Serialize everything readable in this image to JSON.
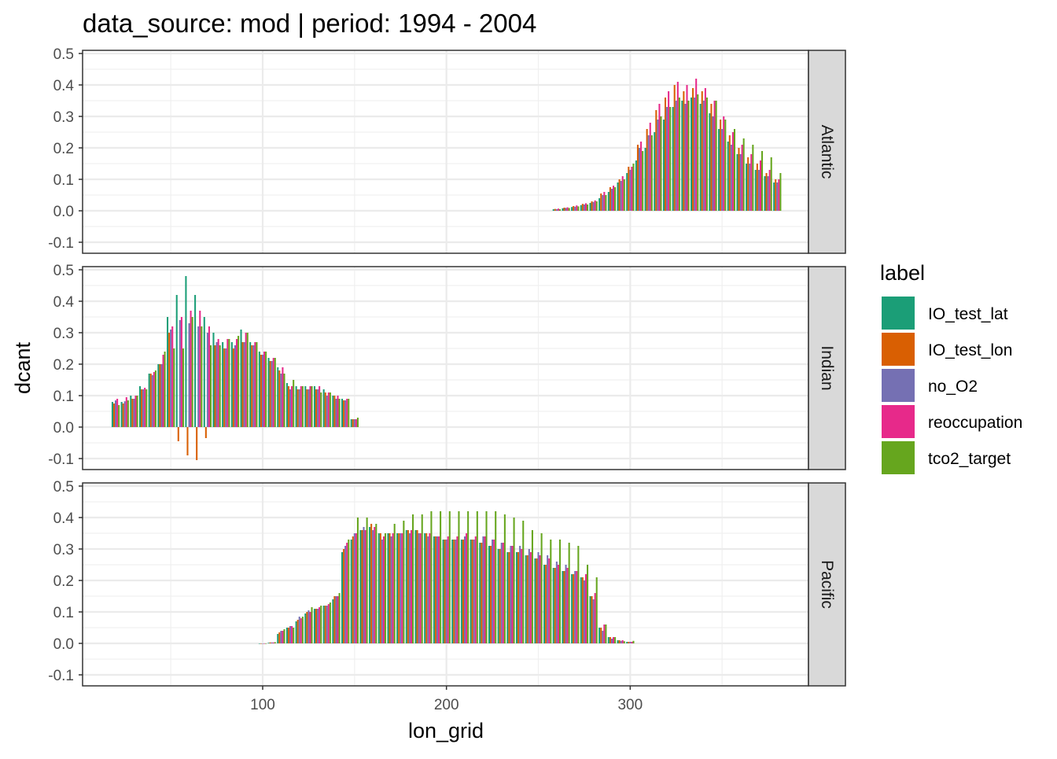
{
  "chart_data": {
    "type": "bar",
    "title": "data_source: mod | period: 1994 - 2004",
    "xlabel": "lon_grid",
    "ylabel": "dcant",
    "xlim": [
      2,
      397
    ],
    "ylim": [
      -0.135,
      0.51
    ],
    "x_ticks": [
      100,
      200,
      300
    ],
    "y_ticks": [
      -0.1,
      0.0,
      0.1,
      0.2,
      0.3,
      0.4,
      0.5
    ],
    "y_tick_labels": [
      "-0.1",
      "0.0",
      "0.1",
      "0.2",
      "0.3",
      "0.4",
      "0.5"
    ],
    "grid": true,
    "legend_position": "right",
    "legend": {
      "title": "label",
      "entries": [
        {
          "name": "IO_test_lat",
          "color": "#1B9E77"
        },
        {
          "name": "IO_test_lon",
          "color": "#D95F02"
        },
        {
          "name": "no_O2",
          "color": "#7570B3"
        },
        {
          "name": "reoccupation",
          "color": "#E7298A"
        },
        {
          "name": "tco2_target",
          "color": "#66A61E"
        }
      ]
    },
    "series_order": [
      "IO_test_lat",
      "IO_test_lon",
      "no_O2",
      "reoccupation",
      "tco2_target"
    ],
    "facets": [
      {
        "name": "Atlantic",
        "x": [
          260,
          265,
          270,
          275,
          280,
          285,
          290,
          295,
          300,
          305,
          310,
          315,
          320,
          325,
          330,
          335,
          340,
          345,
          350,
          355,
          360,
          365,
          370,
          375,
          380
        ],
        "values": [
          [
            0.005,
            0.008,
            0.012,
            0.018,
            0.025,
            0.04,
            0.06,
            0.09,
            0.12,
            0.16,
            0.2,
            0.25,
            0.29,
            0.33,
            0.35,
            0.36,
            0.34,
            0.31,
            0.26,
            0.22,
            0.18,
            0.15,
            0.13,
            0.11,
            0.09
          ],
          [
            0.006,
            0.01,
            0.015,
            0.022,
            0.03,
            0.055,
            0.075,
            0.1,
            0.14,
            0.21,
            0.26,
            0.32,
            0.36,
            0.4,
            0.38,
            0.39,
            0.38,
            0.34,
            0.29,
            0.24,
            0.2,
            0.17,
            0.15,
            0.12,
            0.1
          ],
          [
            0.005,
            0.009,
            0.013,
            0.02,
            0.028,
            0.05,
            0.07,
            0.095,
            0.13,
            0.2,
            0.24,
            0.29,
            0.33,
            0.35,
            0.34,
            0.36,
            0.35,
            0.3,
            0.26,
            0.21,
            0.18,
            0.15,
            0.13,
            0.11,
            0.09
          ],
          [
            0.007,
            0.011,
            0.017,
            0.024,
            0.033,
            0.06,
            0.08,
            0.11,
            0.14,
            0.22,
            0.28,
            0.34,
            0.38,
            0.41,
            0.4,
            0.42,
            0.39,
            0.35,
            0.3,
            0.25,
            0.21,
            0.18,
            0.16,
            0.13,
            0.1
          ],
          [
            0.005,
            0.009,
            0.014,
            0.02,
            0.03,
            0.05,
            0.075,
            0.1,
            0.15,
            0.19,
            0.24,
            0.3,
            0.33,
            0.36,
            0.35,
            0.37,
            0.36,
            0.35,
            0.29,
            0.26,
            0.23,
            0.21,
            0.19,
            0.17,
            0.12
          ]
        ]
      },
      {
        "name": "Indian",
        "x": [
          20,
          25,
          30,
          35,
          40,
          45,
          50,
          55,
          60,
          65,
          70,
          75,
          80,
          85,
          90,
          95,
          100,
          105,
          110,
          115,
          120,
          125,
          130,
          135,
          140,
          145,
          150
        ],
        "values": [
          [
            0.08,
            0.08,
            0.1,
            0.13,
            0.17,
            0.2,
            0.35,
            0.42,
            0.48,
            0.42,
            0.35,
            0.3,
            0.27,
            0.27,
            0.31,
            0.27,
            0.24,
            0.22,
            0.19,
            0.14,
            0.13,
            0.13,
            0.13,
            0.12,
            0.1,
            0.09,
            0.025
          ],
          [
            0.075,
            0.075,
            0.09,
            0.12,
            0.17,
            0.2,
            0.3,
            -0.045,
            -0.09,
            -0.105,
            -0.035,
            0.26,
            0.25,
            0.25,
            0.27,
            0.26,
            0.23,
            0.21,
            0.18,
            0.13,
            0.12,
            0.12,
            0.12,
            0.11,
            0.1,
            0.085,
            0.025
          ],
          [
            0.085,
            0.082,
            0.09,
            0.12,
            0.165,
            0.2,
            0.31,
            0.34,
            0.33,
            0.32,
            0.3,
            0.27,
            0.25,
            0.26,
            0.27,
            0.26,
            0.23,
            0.21,
            0.17,
            0.12,
            0.12,
            0.12,
            0.12,
            0.1,
            0.09,
            0.085,
            0.025
          ],
          [
            0.09,
            0.095,
            0.1,
            0.125,
            0.175,
            0.23,
            0.32,
            0.35,
            0.37,
            0.37,
            0.32,
            0.28,
            0.28,
            0.28,
            0.3,
            0.27,
            0.24,
            0.22,
            0.19,
            0.13,
            0.13,
            0.13,
            0.13,
            0.11,
            0.1,
            0.09,
            0.025
          ],
          [
            0.07,
            0.085,
            0.1,
            0.12,
            0.18,
            0.24,
            0.25,
            0.25,
            0.35,
            0.32,
            0.26,
            0.26,
            0.28,
            0.29,
            0.3,
            0.27,
            0.24,
            0.22,
            0.17,
            0.15,
            0.13,
            0.13,
            0.11,
            0.11,
            0.09,
            0.09,
            0.03
          ]
        ]
      },
      {
        "name": "Pacific",
        "x": [
          100,
          105,
          110,
          115,
          120,
          125,
          130,
          135,
          140,
          145,
          150,
          155,
          160,
          165,
          170,
          175,
          180,
          185,
          190,
          195,
          200,
          205,
          210,
          215,
          220,
          225,
          230,
          235,
          240,
          245,
          250,
          255,
          260,
          265,
          270,
          275,
          280,
          285,
          290,
          295,
          300
        ],
        "values": [
          [
            0.0,
            0.002,
            0.03,
            0.05,
            0.07,
            0.095,
            0.11,
            0.12,
            0.14,
            0.29,
            0.33,
            0.36,
            0.37,
            0.35,
            0.35,
            0.35,
            0.36,
            0.36,
            0.35,
            0.34,
            0.33,
            0.33,
            0.33,
            0.33,
            0.32,
            0.31,
            0.3,
            0.29,
            0.29,
            0.28,
            0.27,
            0.25,
            0.24,
            0.23,
            0.22,
            0.21,
            0.15,
            0.05,
            0.02,
            0.01,
            0.005
          ],
          [
            0.0,
            0.003,
            0.035,
            0.05,
            0.075,
            0.1,
            0.11,
            0.12,
            0.15,
            0.3,
            0.34,
            0.36,
            0.38,
            0.35,
            0.35,
            0.35,
            0.36,
            0.36,
            0.35,
            0.34,
            0.33,
            0.33,
            0.33,
            0.33,
            0.32,
            0.31,
            0.3,
            0.29,
            0.29,
            0.28,
            0.27,
            0.25,
            0.24,
            0.23,
            0.22,
            0.21,
            0.15,
            0.05,
            0.02,
            0.01,
            0.005
          ],
          [
            0.0,
            0.003,
            0.04,
            0.055,
            0.085,
            0.105,
            0.11,
            0.12,
            0.15,
            0.31,
            0.35,
            0.37,
            0.36,
            0.33,
            0.34,
            0.35,
            0.35,
            0.35,
            0.34,
            0.34,
            0.33,
            0.33,
            0.34,
            0.33,
            0.34,
            0.33,
            0.32,
            0.31,
            0.31,
            0.3,
            0.29,
            0.28,
            0.26,
            0.25,
            0.23,
            0.2,
            0.14,
            0.04,
            0.015,
            0.008,
            0.005
          ],
          [
            0.0,
            0.003,
            0.04,
            0.055,
            0.08,
            0.1,
            0.115,
            0.125,
            0.15,
            0.32,
            0.35,
            0.36,
            0.37,
            0.34,
            0.35,
            0.35,
            0.36,
            0.35,
            0.35,
            0.34,
            0.34,
            0.34,
            0.35,
            0.34,
            0.34,
            0.33,
            0.32,
            0.31,
            0.3,
            0.29,
            0.28,
            0.27,
            0.25,
            0.24,
            0.23,
            0.22,
            0.16,
            0.06,
            0.02,
            0.01,
            0.005
          ],
          [
            0.0,
            0.004,
            0.045,
            0.05,
            0.085,
            0.115,
            0.12,
            0.13,
            0.16,
            0.33,
            0.4,
            0.4,
            0.38,
            0.35,
            0.38,
            0.39,
            0.41,
            0.41,
            0.42,
            0.42,
            0.42,
            0.42,
            0.42,
            0.42,
            0.42,
            0.42,
            0.41,
            0.4,
            0.39,
            0.36,
            0.35,
            0.33,
            0.33,
            0.32,
            0.31,
            0.25,
            0.21,
            0.06,
            0.02,
            0.007,
            0.008
          ]
        ]
      }
    ]
  }
}
